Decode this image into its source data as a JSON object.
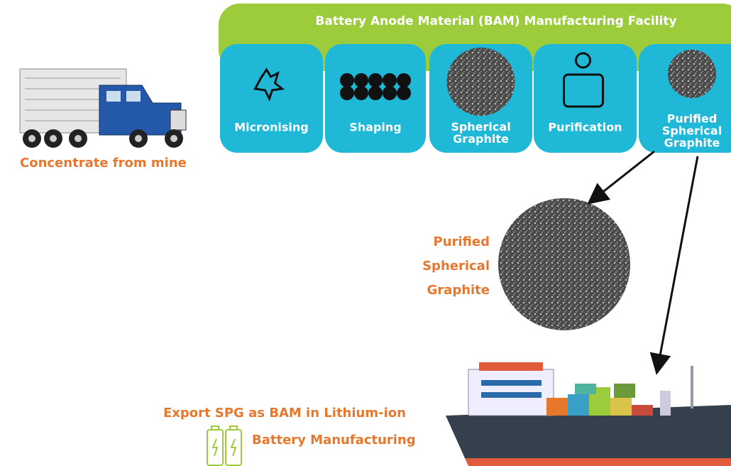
{
  "facility": {
    "title": "Battery Anode Material (BAM) Manufacturing Facility",
    "steps": [
      [
        "Micronising"
      ],
      [
        "Shaping"
      ],
      [
        "Spherical",
        "Graphite"
      ],
      [
        "Purification"
      ],
      [
        "Purified",
        "Spherical",
        "Graphite"
      ]
    ]
  },
  "truck": {
    "label": "Concentrate from mine"
  },
  "product": {
    "label": [
      "Purified",
      "Spherical",
      "Graphite"
    ]
  },
  "export": {
    "label": [
      "Export SPG as BAM in Lithium-ion",
      "Battery Manufacturing"
    ]
  }
}
